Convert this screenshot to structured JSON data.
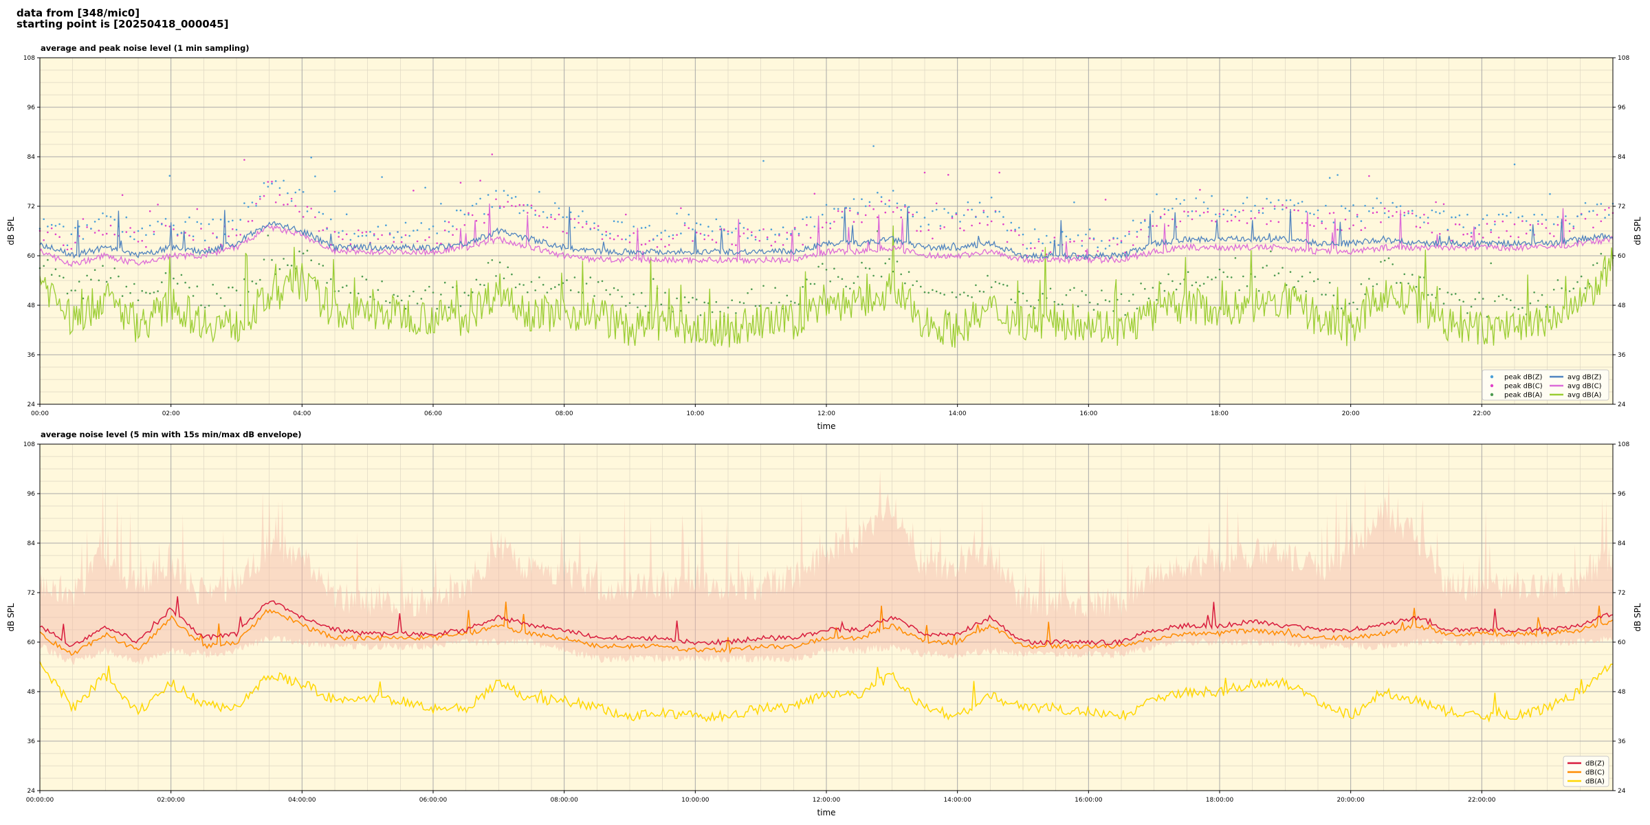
{
  "header": {
    "line1": "data from [348/mic0]",
    "line2": "starting point is [20250418_000045]"
  },
  "colors": {
    "background": "#fff8dc",
    "grid_major": "#a8a8a8",
    "grid_minor": "#ddd6c2",
    "peak_z": "#4a9fd8",
    "peak_c": "#e040c8",
    "peak_a": "#4c9a50",
    "avg_z": "#4f83bf",
    "avg_c": "#dc6bd8",
    "avg_a": "#9acd32",
    "env_z": "#d81b3c",
    "env_c": "#ff8c00",
    "env_a": "#ffd700",
    "envelope_fill": "#f4b7a8"
  },
  "chart_data": [
    {
      "type": "line",
      "title": "average and peak noise level (1 min sampling)",
      "xlabel": "time",
      "ylabel": "dB SPL",
      "x_unit": "hours since start",
      "xlim": [
        0,
        24
      ],
      "ylim": [
        24,
        108
      ],
      "yticks": [
        "24",
        "36",
        "48",
        "60",
        "72",
        "84",
        "96",
        "108"
      ],
      "xticks": [
        "00:00",
        "02:00",
        "04:00",
        "06:00",
        "08:00",
        "10:00",
        "12:00",
        "14:00",
        "16:00",
        "18:00",
        "20:00",
        "22:00"
      ],
      "grid": true,
      "legend_position": "bottom-right",
      "legend": [
        {
          "label": "peak dB(Z)",
          "kind": "dot",
          "color_key": "peak_z"
        },
        {
          "label": "peak dB(C)",
          "kind": "dot",
          "color_key": "peak_c"
        },
        {
          "label": "peak dB(A)",
          "kind": "dot",
          "color_key": "peak_a"
        },
        {
          "label": "avg dB(Z)",
          "kind": "line",
          "color_key": "avg_z"
        },
        {
          "label": "avg dB(C)",
          "kind": "line",
          "color_key": "avg_c"
        },
        {
          "label": "avg dB(A)",
          "kind": "line",
          "color_key": "avg_a"
        }
      ],
      "x": [
        0,
        0.5,
        1,
        1.5,
        2,
        2.5,
        3,
        3.5,
        4,
        4.5,
        5,
        5.5,
        6,
        6.5,
        7,
        7.5,
        8,
        8.5,
        9,
        9.5,
        10,
        10.5,
        11,
        11.5,
        12,
        12.5,
        13,
        13.5,
        14,
        14.5,
        15,
        15.5,
        16,
        16.5,
        17,
        17.5,
        18,
        18.5,
        19,
        19.5,
        20,
        20.5,
        21,
        21.5,
        22,
        22.5,
        23,
        23.5,
        24
      ],
      "series": [
        {
          "name": "avg dB(Z)",
          "values": [
            63,
            60,
            62,
            60,
            62,
            61,
            63,
            68,
            66,
            62,
            62,
            62,
            62,
            63,
            66,
            64,
            62,
            61,
            61,
            61,
            61,
            61,
            61,
            61,
            63,
            63,
            64,
            62,
            62,
            63,
            60,
            60,
            60,
            60,
            63,
            64,
            64,
            64,
            64,
            63,
            63,
            64,
            63,
            63,
            63,
            63,
            63,
            64,
            65
          ]
        },
        {
          "name": "avg dB(C)",
          "values": [
            61,
            58,
            60,
            58,
            60,
            60,
            62,
            67,
            65,
            61,
            61,
            61,
            61,
            62,
            64,
            62,
            60,
            59,
            59,
            59,
            59,
            59,
            59,
            59,
            61,
            61,
            62,
            60,
            60,
            61,
            59,
            59,
            59,
            59,
            61,
            62,
            62,
            62,
            62,
            61,
            61,
            62,
            62,
            62,
            62,
            62,
            62,
            63,
            64
          ]
        },
        {
          "name": "avg dB(A)",
          "values": [
            55,
            44,
            50,
            43,
            48,
            44,
            43,
            50,
            54,
            46,
            46,
            46,
            45,
            45,
            52,
            46,
            46,
            46,
            42,
            44,
            42,
            42,
            44,
            44,
            49,
            48,
            52,
            44,
            42,
            47,
            44,
            44,
            44,
            42,
            46,
            48,
            47,
            48,
            49,
            45,
            42,
            51,
            48,
            43,
            42,
            43,
            44,
            48,
            58
          ]
        },
        {
          "name": "peak dB(Z)",
          "values": [
            68,
            64,
            70,
            66,
            68,
            66,
            68,
            78,
            74,
            66,
            66,
            66,
            66,
            70,
            74,
            72,
            70,
            66,
            66,
            66,
            68,
            66,
            66,
            66,
            70,
            72,
            74,
            68,
            70,
            72,
            64,
            64,
            64,
            64,
            70,
            72,
            72,
            72,
            72,
            70,
            70,
            72,
            70,
            68,
            68,
            68,
            68,
            70,
            72
          ]
        },
        {
          "name": "peak dB(C)",
          "values": [
            66,
            62,
            68,
            64,
            66,
            64,
            66,
            76,
            72,
            64,
            64,
            64,
            64,
            68,
            72,
            70,
            68,
            64,
            64,
            64,
            66,
            64,
            64,
            64,
            68,
            70,
            72,
            66,
            68,
            70,
            62,
            62,
            62,
            62,
            68,
            70,
            70,
            70,
            70,
            68,
            68,
            70,
            68,
            66,
            66,
            66,
            66,
            68,
            70
          ]
        },
        {
          "name": "peak dB(A)",
          "values": [
            60,
            50,
            56,
            50,
            54,
            50,
            50,
            58,
            60,
            52,
            52,
            50,
            50,
            50,
            58,
            52,
            52,
            52,
            48,
            50,
            48,
            48,
            50,
            50,
            56,
            54,
            58,
            50,
            48,
            54,
            50,
            50,
            50,
            48,
            52,
            54,
            54,
            54,
            56,
            52,
            48,
            58,
            54,
            48,
            48,
            48,
            50,
            54,
            60
          ]
        }
      ]
    },
    {
      "type": "line",
      "title": "average noise level (5 min with 15s min/max dB envelope)",
      "xlabel": "time",
      "ylabel": "dB SPL",
      "x_unit": "hours since start",
      "xlim": [
        0,
        24
      ],
      "ylim": [
        24,
        108
      ],
      "yticks": [
        "24",
        "36",
        "48",
        "60",
        "72",
        "84",
        "96",
        "108"
      ],
      "xticks": [
        "00:00:00",
        "02:00:00",
        "04:00:00",
        "06:00:00",
        "08:00:00",
        "10:00:00",
        "12:00:00",
        "14:00:00",
        "16:00:00",
        "18:00:00",
        "20:00:00",
        "22:00:00"
      ],
      "grid": true,
      "legend_position": "bottom-right",
      "legend": [
        {
          "label": "dB(Z)",
          "kind": "line",
          "color_key": "env_z"
        },
        {
          "label": "dB(C)",
          "kind": "line",
          "color_key": "env_c"
        },
        {
          "label": "dB(A)",
          "kind": "line",
          "color_key": "env_a"
        }
      ],
      "x": [
        0,
        0.5,
        1,
        1.5,
        2,
        2.5,
        3,
        3.5,
        4,
        4.5,
        5,
        5.5,
        6,
        6.5,
        7,
        7.5,
        8,
        8.5,
        9,
        9.5,
        10,
        10.5,
        11,
        11.5,
        12,
        12.5,
        13,
        13.5,
        14,
        14.5,
        15,
        15.5,
        16,
        16.5,
        17,
        17.5,
        18,
        18.5,
        19,
        19.5,
        20,
        20.5,
        21,
        21.5,
        22,
        22.5,
        23,
        23.5,
        24
      ],
      "series": [
        {
          "name": "dB(Z)",
          "values": [
            64,
            59,
            64,
            60,
            68,
            61,
            62,
            70,
            66,
            63,
            62,
            62,
            62,
            63,
            66,
            64,
            63,
            61,
            61,
            61,
            60,
            60,
            61,
            61,
            63,
            63,
            66,
            62,
            62,
            66,
            60,
            60,
            60,
            60,
            63,
            64,
            64,
            65,
            64,
            63,
            63,
            64,
            66,
            63,
            63,
            63,
            63,
            64,
            67
          ]
        },
        {
          "name": "dB(C)",
          "values": [
            62,
            57,
            62,
            58,
            66,
            59,
            60,
            68,
            64,
            61,
            61,
            61,
            61,
            62,
            64,
            62,
            61,
            59,
            59,
            59,
            58,
            58,
            59,
            59,
            61,
            61,
            64,
            60,
            60,
            64,
            59,
            59,
            59,
            59,
            61,
            62,
            62,
            63,
            62,
            61,
            61,
            62,
            64,
            62,
            62,
            62,
            62,
            63,
            65
          ]
        },
        {
          "name": "dB(A)",
          "values": [
            55,
            44,
            52,
            43,
            50,
            45,
            44,
            52,
            50,
            46,
            46,
            46,
            44,
            44,
            50,
            46,
            46,
            44,
            42,
            43,
            42,
            42,
            44,
            44,
            48,
            47,
            52,
            44,
            42,
            47,
            44,
            44,
            43,
            42,
            46,
            48,
            48,
            50,
            50,
            46,
            42,
            48,
            46,
            43,
            42,
            42,
            44,
            48,
            55
          ]
        },
        {
          "name": "max envelope",
          "values": [
            72,
            70,
            80,
            72,
            78,
            70,
            72,
            82,
            80,
            70,
            68,
            68,
            68,
            72,
            82,
            76,
            76,
            72,
            72,
            72,
            74,
            72,
            72,
            74,
            80,
            84,
            92,
            76,
            78,
            80,
            68,
            68,
            68,
            68,
            76,
            78,
            78,
            80,
            80,
            76,
            80,
            90,
            84,
            72,
            72,
            72,
            72,
            74,
            80
          ]
        },
        {
          "name": "min envelope",
          "values": [
            60,
            56,
            59,
            56,
            59,
            58,
            59,
            62,
            61,
            60,
            60,
            60,
            60,
            61,
            61,
            61,
            59,
            57,
            57,
            57,
            57,
            57,
            57,
            57,
            59,
            59,
            60,
            58,
            58,
            59,
            58,
            58,
            58,
            58,
            60,
            61,
            61,
            61,
            61,
            60,
            60,
            60,
            61,
            61,
            61,
            61,
            61,
            61,
            62
          ]
        }
      ]
    }
  ]
}
